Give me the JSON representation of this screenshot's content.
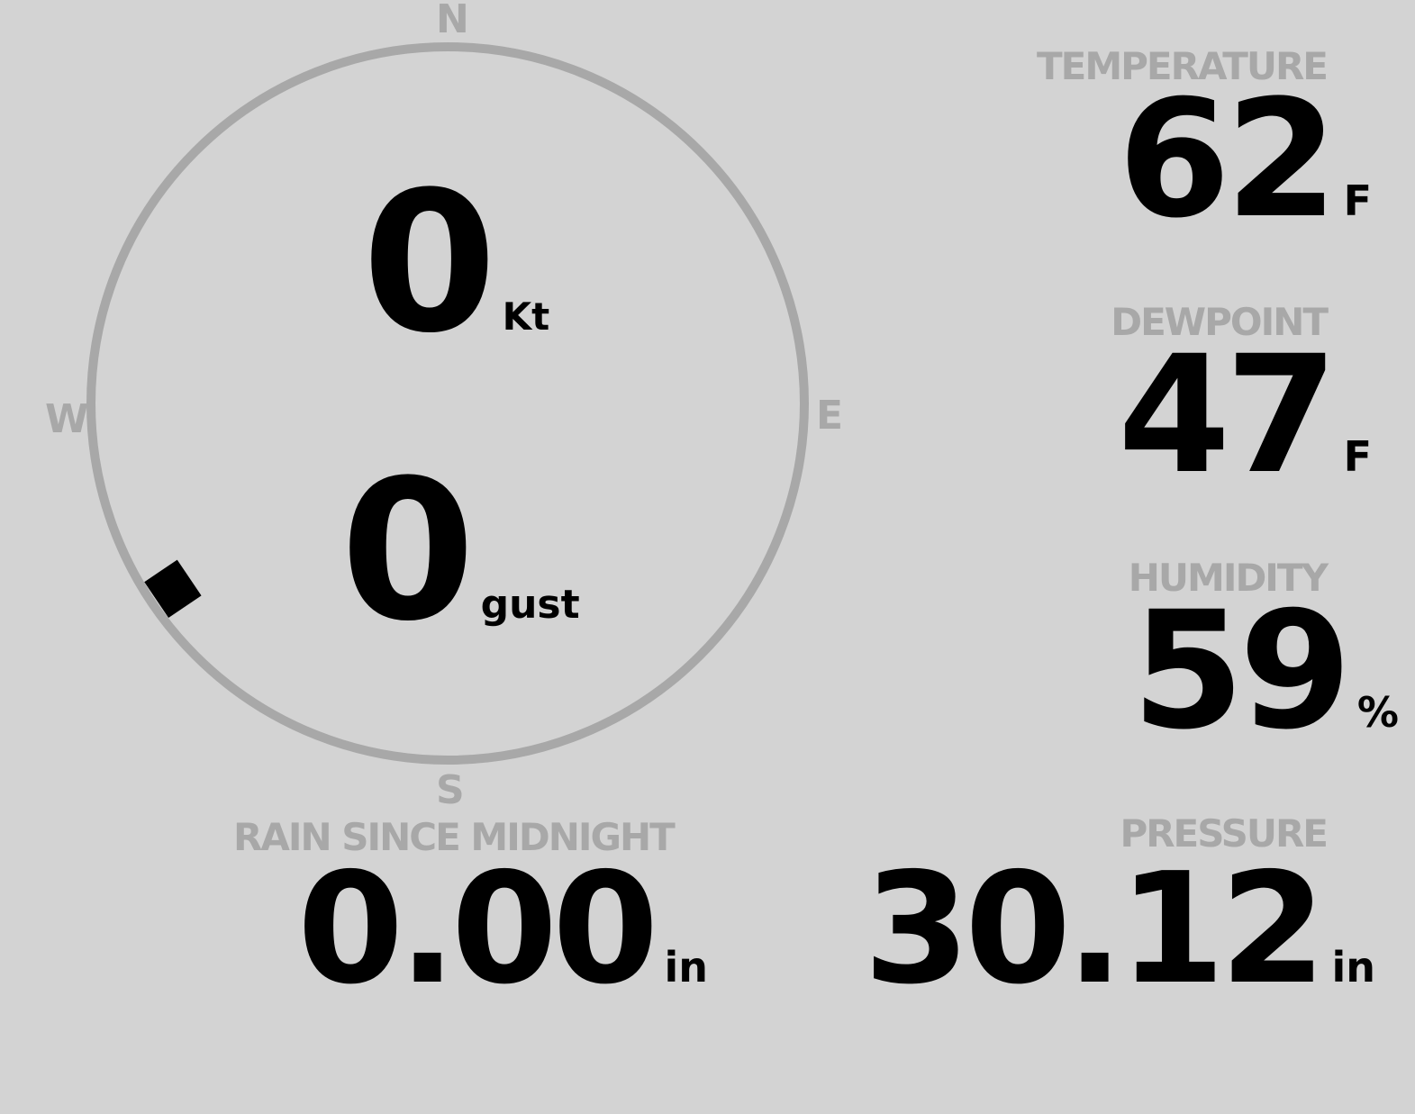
{
  "wind": {
    "speed": "0",
    "speed_unit": "Kt",
    "gust": "0",
    "gust_unit": "gust",
    "direction_deg": 236,
    "compass": {
      "n": "N",
      "e": "E",
      "s": "S",
      "w": "W"
    },
    "colors": {
      "ring": "#a8a8a8",
      "marker": "#000000"
    }
  },
  "temperature": {
    "label": "TEMPERATURE",
    "value": "62",
    "unit": "F"
  },
  "dewpoint": {
    "label": "DEWPOINT",
    "value": "47",
    "unit": "F"
  },
  "humidity": {
    "label": "HUMIDITY",
    "value": "59",
    "unit": "%"
  },
  "rain": {
    "label": "RAIN SINCE MIDNIGHT",
    "value": "0.00",
    "unit": "in"
  },
  "pressure": {
    "label": "PRESSURE",
    "value": "30.12",
    "unit": "in"
  },
  "colors": {
    "background": "#d3d3d3",
    "label": "#a8a8a8",
    "value": "#000000"
  }
}
